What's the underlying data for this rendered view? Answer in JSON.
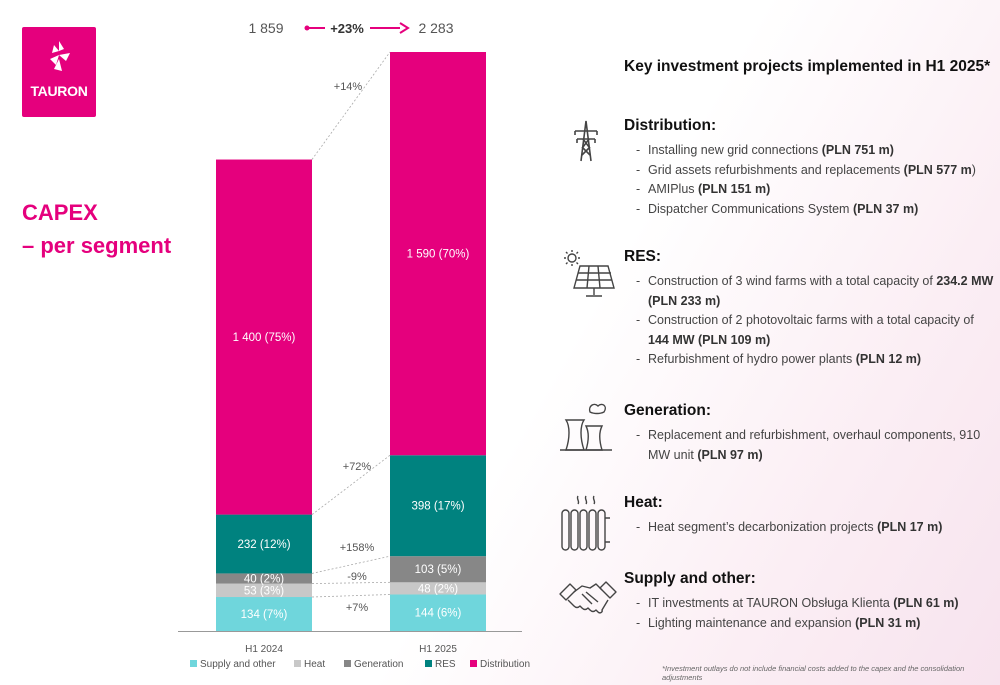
{
  "logo": {
    "text": "TAURON",
    "color": "#e5007d"
  },
  "title_lines": [
    "CAPEX",
    "– per segment"
  ],
  "chart_data": {
    "type": "bar",
    "stacked": true,
    "categories": [
      "H1 2024",
      "H1 2025"
    ],
    "totals": [
      1859,
      2283
    ],
    "total_labels": [
      "1 859",
      "2 283"
    ],
    "total_change": "+23%",
    "legend_position": "bottom",
    "series": [
      {
        "name": "Supply and other",
        "color": "#6fd6dc",
        "values": [
          134,
          144
        ],
        "labels": [
          "134 (7%)",
          "144 (6%)"
        ],
        "change": "+7%"
      },
      {
        "name": "Heat",
        "color": "#c8c8c8",
        "values": [
          53,
          48
        ],
        "labels": [
          "53 (3%)",
          "48 (2%)"
        ],
        "change": "-9%"
      },
      {
        "name": "Generation",
        "color": "#878787",
        "values": [
          40,
          103
        ],
        "labels": [
          "40 (2%)",
          "103 (5%)"
        ],
        "change": "+158%"
      },
      {
        "name": "RES",
        "color": "#00827f",
        "values": [
          232,
          398
        ],
        "labels": [
          "232 (12%)",
          "398 (17%)"
        ],
        "change": "+72%"
      },
      {
        "name": "Distribution",
        "color": "#e5007d",
        "values": [
          1400,
          1590
        ],
        "labels": [
          "1 400 (75%)",
          "1 590 (70%)"
        ],
        "change": "+14%"
      }
    ]
  },
  "panel": {
    "title": "Key investment projects implemented in H1 2025*",
    "sections": [
      {
        "title": "Distribution:",
        "icon": "power-tower-icon",
        "items": [
          {
            "text": "Installing new grid connections ",
            "bold": "(PLN 751 m)"
          },
          {
            "text": "Grid assets refurbishments and replacements ",
            "bold": "(PLN 577 m",
            "tail": ")"
          },
          {
            "text": "AMIPlus  ",
            "bold": "(PLN 151 m)"
          },
          {
            "text": "Dispatcher Communications System ",
            "bold": "(PLN 37 m)"
          }
        ]
      },
      {
        "title": "RES:",
        "icon": "solar-panel-icon",
        "items": [
          {
            "text": "Construction of 3 wind farms with a total capacity of ",
            "bold": "234.2 MW (PLN 233 m)"
          },
          {
            "text": "Construction of 2 photovoltaic farms with a total capacity of ",
            "bold": "144 MW (PLN 109 m)"
          },
          {
            "text": "Refurbishment of hydro power plants ",
            "bold": "(PLN 12 m)"
          }
        ]
      },
      {
        "title": "Generation:",
        "icon": "cooling-tower-icon",
        "items": [
          {
            "text": "Replacement and refurbishment, overhaul components, 910 MW unit ",
            "bold": "(PLN 97 m)"
          }
        ]
      },
      {
        "title": "Heat:",
        "icon": "radiator-icon",
        "items": [
          {
            "text": "Heat segment’s decarbonization projects ",
            "bold": "(PLN 17 m)"
          }
        ]
      },
      {
        "title": "Supply and other:",
        "icon": "handshake-icon",
        "items": [
          {
            "text": "IT investments at TAURON Obsługa Klienta ",
            "bold": "(PLN 61 m)"
          },
          {
            "text": "Lighting maintenance and expansion ",
            "bold": "(PLN 31 m)"
          }
        ]
      }
    ]
  },
  "footnote": "*Investment outlays do not include financial costs added  to the capex and the consolidation adjustments"
}
